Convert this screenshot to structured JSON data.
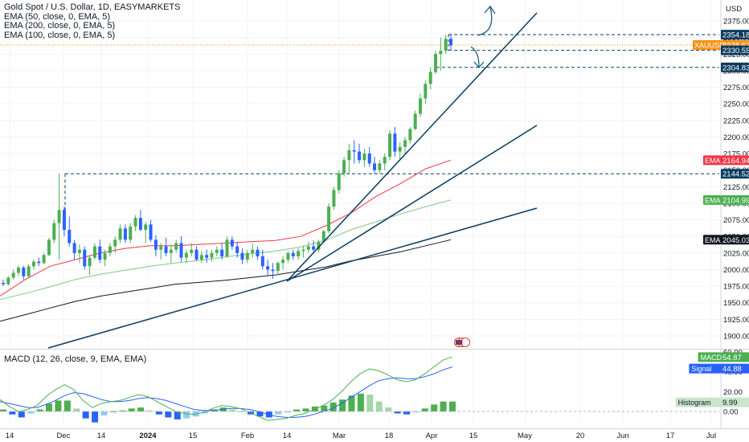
{
  "legend": {
    "title": "Gold Spot / U.S. Dollar, 1D, EASYMARKETS",
    "ema50": "EMA (50, close, 0, EMA, 5)",
    "ema200": "EMA (200, close, 0, EMA, 5)",
    "ema100": "EMA (100, close, 0, EMA, 5)"
  },
  "macd_legend": "MACD (12, 26, close, 9, EMA, EMA)",
  "currency": "USD",
  "colors": {
    "up": "#4caf50",
    "down": "#2962ff",
    "ema50": "#f23645",
    "ema100": "#131722",
    "ema200": "#81c784",
    "trendline": "#0c3c60",
    "price_tag": "#f7931a",
    "level_tag": "#0c3c60",
    "macd_line": "#4caf50",
    "signal_line": "#2962ff"
  },
  "chart_data": [
    {
      "type": "candlestick",
      "title": "Gold Spot / U.S. Dollar, 1D, EASYMARKETS",
      "x_ticks": [
        "14",
        "Dec",
        "14",
        "2024",
        "15",
        "Feb",
        "14",
        "Mar",
        "18",
        "Apr",
        "15",
        "May",
        "20",
        "Jun",
        "17",
        "Jul"
      ],
      "y_ticks": [
        "2375.00",
        "2350.00",
        "2325.00",
        "2300.00",
        "2275.00",
        "2250.00",
        "2225.00",
        "2200.00",
        "2175.00",
        "2150.00",
        "2125.00",
        "2100.00",
        "2075.00",
        "2050.00",
        "2025.00",
        "2000.00",
        "1975.00",
        "1950.00",
        "1925.00",
        "1900.00"
      ],
      "ylim": [
        1880,
        2392
      ],
      "price_labels": [
        {
          "text": "2354.18",
          "value": 2354.18,
          "color": "#0c3c60"
        },
        {
          "text": "XAUUSD",
          "value": 2338.62,
          "color": "#f7931a"
        },
        {
          "text": "2338.62",
          "value": 2338.62,
          "color": "#f7931a"
        },
        {
          "text": "2330.55",
          "value": 2330.55,
          "color": "#0c3c60"
        },
        {
          "text": "2304.83",
          "value": 2304.83,
          "color": "#0c3c60"
        },
        {
          "text": "2164.94",
          "value": 2164.94,
          "color": "#f23645",
          "tag": "EMA"
        },
        {
          "text": "2144.52",
          "value": 2144.52,
          "color": "#0c3c60"
        },
        {
          "text": "2104.99",
          "value": 2104.99,
          "color": "#4caf50",
          "tag": "EMA"
        },
        {
          "text": "2045.03",
          "value": 2045.03,
          "color": "#131722",
          "tag": "EMA"
        }
      ],
      "horizontal_levels": [
        2354.18,
        2330.55,
        2304.83,
        2144.52
      ],
      "last_price": 2338.62,
      "candles": [
        [
          1980,
          1985,
          1975,
          1978
        ],
        [
          1978,
          1990,
          1976,
          1988
        ],
        [
          1988,
          2000,
          1985,
          1995
        ],
        [
          1995,
          2006,
          1990,
          2003
        ],
        [
          2003,
          2006,
          1985,
          1990
        ],
        [
          1990,
          2008,
          1988,
          2005
        ],
        [
          2005,
          2015,
          2000,
          2012
        ],
        [
          2012,
          2018,
          2005,
          2010
        ],
        [
          2010,
          2025,
          2008,
          2022
        ],
        [
          2022,
          2048,
          2020,
          2045
        ],
        [
          2045,
          2075,
          2040,
          2070
        ],
        [
          2070,
          2145,
          2015,
          2090
        ],
        [
          2090,
          2095,
          2050,
          2060
        ],
        [
          2060,
          2080,
          2035,
          2040
        ],
        [
          2040,
          2045,
          2015,
          2025
        ],
        [
          2025,
          2038,
          2010,
          2030
        ],
        [
          2030,
          2035,
          2000,
          2005
        ],
        [
          2005,
          2022,
          1992,
          2018
        ],
        [
          2018,
          2040,
          2015,
          2035
        ],
        [
          2035,
          2045,
          2010,
          2015
        ],
        [
          2015,
          2030,
          2005,
          2025
        ],
        [
          2025,
          2040,
          2020,
          2035
        ],
        [
          2035,
          2050,
          2025,
          2045
        ],
        [
          2045,
          2068,
          2040,
          2062
        ],
        [
          2062,
          2068,
          2040,
          2045
        ],
        [
          2045,
          2070,
          2040,
          2065
        ],
        [
          2065,
          2082,
          2058,
          2078
        ],
        [
          2078,
          2090,
          2058,
          2060
        ],
        [
          2060,
          2072,
          2040,
          2068
        ],
        [
          2068,
          2075,
          2042,
          2045
        ],
        [
          2045,
          2052,
          2020,
          2030
        ],
        [
          2030,
          2040,
          2015,
          2035
        ],
        [
          2035,
          2048,
          2020,
          2025
        ],
        [
          2025,
          2038,
          2010,
          2030
        ],
        [
          2030,
          2045,
          2025,
          2040
        ],
        [
          2040,
          2050,
          2012,
          2018
        ],
        [
          2018,
          2030,
          2010,
          2025
        ],
        [
          2025,
          2040,
          2020,
          2030
        ],
        [
          2030,
          2035,
          2013,
          2015
        ],
        [
          2015,
          2028,
          2010,
          2022
        ],
        [
          2022,
          2030,
          2010,
          2018
        ],
        [
          2018,
          2030,
          2012,
          2025
        ],
        [
          2025,
          2035,
          2020,
          2030
        ],
        [
          2030,
          2040,
          2015,
          2020
        ],
        [
          2020,
          2050,
          2018,
          2045
        ],
        [
          2045,
          2050,
          2030,
          2035
        ],
        [
          2035,
          2042,
          2018,
          2025
        ],
        [
          2025,
          2032,
          2008,
          2015
        ],
        [
          2015,
          2030,
          2010,
          2025
        ],
        [
          2025,
          2040,
          2018,
          2030
        ],
        [
          2030,
          2035,
          2015,
          2020
        ],
        [
          2020,
          2030,
          2000,
          2005
        ],
        [
          2005,
          2015,
          1990,
          2000
        ],
        [
          2000,
          2010,
          1986,
          1998
        ],
        [
          1998,
          2012,
          1992,
          2010
        ],
        [
          2010,
          2020,
          2000,
          2015
        ],
        [
          2015,
          2028,
          2010,
          2025
        ],
        [
          2025,
          2030,
          2015,
          2020
        ],
        [
          2020,
          2032,
          2015,
          2028
        ],
        [
          2028,
          2036,
          2018,
          2030
        ],
        [
          2030,
          2042,
          2025,
          2035
        ],
        [
          2035,
          2044,
          2028,
          2030
        ],
        [
          2030,
          2045,
          2026,
          2042
        ],
        [
          2042,
          2060,
          2040,
          2058
        ],
        [
          2058,
          2100,
          2055,
          2095
        ],
        [
          2095,
          2125,
          2090,
          2120
        ],
        [
          2120,
          2150,
          2115,
          2145
        ],
        [
          2145,
          2170,
          2140,
          2165
        ],
        [
          2165,
          2190,
          2145,
          2180
        ],
        [
          2180,
          2195,
          2160,
          2178
        ],
        [
          2178,
          2190,
          2160,
          2165
        ],
        [
          2165,
          2182,
          2155,
          2175
        ],
        [
          2175,
          2185,
          2155,
          2160
        ],
        [
          2160,
          2170,
          2145,
          2150
        ],
        [
          2150,
          2165,
          2145,
          2160
        ],
        [
          2160,
          2175,
          2150,
          2170
        ],
        [
          2170,
          2210,
          2165,
          2205
        ],
        [
          2205,
          2215,
          2170,
          2178
        ],
        [
          2178,
          2192,
          2165,
          2185
        ],
        [
          2185,
          2200,
          2175,
          2195
        ],
        [
          2195,
          2215,
          2190,
          2212
        ],
        [
          2212,
          2240,
          2210,
          2235
        ],
        [
          2235,
          2265,
          2230,
          2258
        ],
        [
          2258,
          2285,
          2250,
          2280
        ],
        [
          2280,
          2305,
          2272,
          2298
        ],
        [
          2298,
          2330,
          2295,
          2325
        ],
        [
          2325,
          2350,
          2300,
          2330
        ],
        [
          2330,
          2354,
          2325,
          2348
        ],
        [
          2348,
          2356,
          2330,
          2338
        ]
      ],
      "ema50": [
        1960,
        1985,
        2005,
        2015,
        2025,
        2032,
        2036,
        2036,
        2038,
        2040,
        2042,
        2044,
        2050,
        2066,
        2085,
        2110,
        2130,
        2152,
        2165
      ],
      "ema100": [
        1955,
        1964,
        1974,
        1985,
        1993,
        1999,
        2005,
        2010,
        2014,
        2019,
        2024,
        2028,
        2034,
        2044,
        2060,
        2072,
        2084,
        2095,
        2105
      ],
      "ema200": [
        1922,
        1932,
        1942,
        1952,
        1960,
        1966,
        1972,
        1978,
        1981,
        1984,
        1988,
        1992,
        1998,
        2004,
        2013,
        2020,
        2027,
        2036,
        2045
      ]
    },
    {
      "type": "macd",
      "title": "MACD (12, 26, close, 9, EMA, EMA)",
      "y_ticks": [
        "60.00",
        "40.00",
        "20.00",
        "0.00"
      ],
      "ylim": [
        -14,
        62
      ],
      "labels": [
        {
          "name": "MACD",
          "value": "54.87",
          "color": "#4caf50"
        },
        {
          "name": "Signal",
          "value": "44.88",
          "color": "#2962ff"
        },
        {
          "name": "Histogram",
          "value": "9.99",
          "color": "#c8e6c9"
        }
      ],
      "macd": [
        12,
        5,
        0,
        2,
        6,
        15,
        22,
        27,
        22,
        11,
        4,
        8,
        10,
        11,
        14,
        17,
        15,
        10,
        5,
        0,
        -2,
        -3,
        -1,
        3,
        6,
        5,
        3,
        -1,
        -5,
        -9,
        -8,
        -7,
        -4,
        -2,
        2,
        6,
        12,
        20,
        30,
        38,
        43,
        41,
        37,
        32,
        30,
        32,
        38,
        45,
        52,
        55
      ],
      "signal": [
        10,
        8,
        6,
        4,
        4,
        7,
        11,
        16,
        19,
        18,
        15,
        12,
        10,
        10,
        11,
        13,
        14,
        13,
        11,
        8,
        5,
        2,
        1,
        1,
        2,
        3,
        3,
        2,
        0,
        -3,
        -5,
        -6,
        -6,
        -5,
        -3,
        0,
        3,
        8,
        14,
        20,
        26,
        31,
        33,
        34,
        33,
        33,
        35,
        38,
        42,
        45
      ],
      "histogram": [
        2,
        -3,
        -6,
        -2,
        2,
        8,
        11,
        11,
        3,
        -7,
        -11,
        -4,
        0,
        1,
        3,
        4,
        1,
        -3,
        -6,
        -8,
        -7,
        -5,
        -2,
        2,
        4,
        2,
        0,
        -3,
        -5,
        -6,
        -3,
        -1,
        2,
        3,
        5,
        6,
        9,
        12,
        16,
        18,
        17,
        10,
        4,
        -2,
        -3,
        -1,
        3,
        7,
        10,
        10
      ]
    }
  ]
}
